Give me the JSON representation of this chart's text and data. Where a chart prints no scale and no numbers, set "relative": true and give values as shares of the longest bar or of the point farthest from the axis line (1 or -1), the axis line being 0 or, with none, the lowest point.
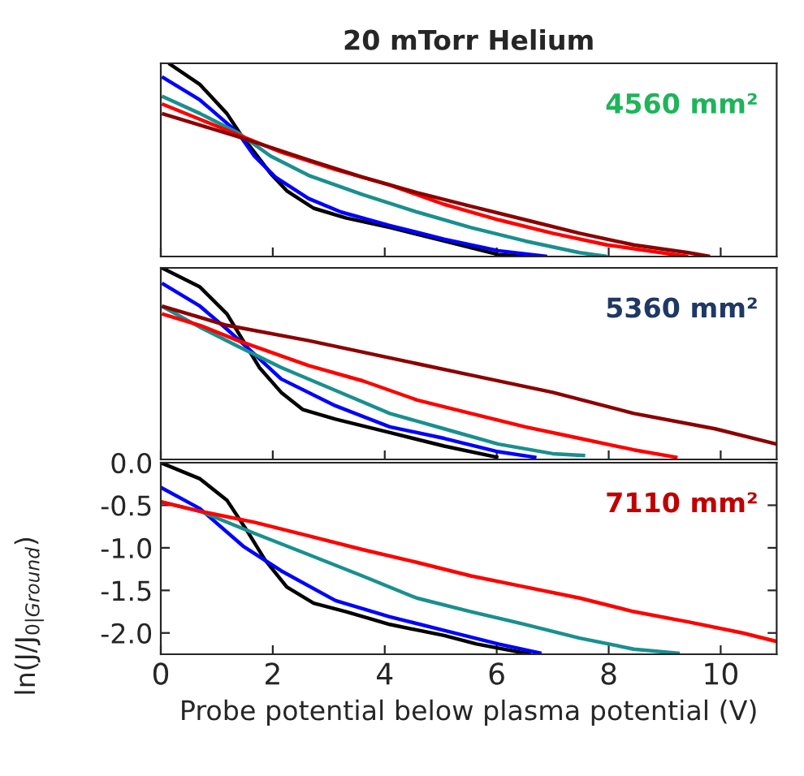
{
  "chart_data": [
    {
      "type": "line",
      "title": "20 mTorr Helium",
      "annotations": [
        "4560 mm²"
      ],
      "relative": true,
      "xlim": [
        0,
        11
      ],
      "tick_labels": false,
      "xticks": [
        {
          "value": 0,
          "label": null
        },
        {
          "value": 2,
          "label": null
        },
        {
          "value": 4,
          "label": null
        },
        {
          "value": 6,
          "label": null
        },
        {
          "value": 8,
          "label": null
        },
        {
          "value": 10,
          "label": null
        }
      ],
      "series": [
        {
          "color": "#000000",
          "x": [
            0.14,
            0.7,
            1.18,
            1.43,
            1.67,
            1.96,
            2.25,
            2.73,
            3.3,
            4.1,
            5.06,
            6.03,
            6.56
          ],
          "values": [
            1,
            0.89,
            0.74,
            0.63,
            0.54,
            0.43,
            0.34,
            0.25,
            0.2,
            0.15,
            0.08,
            0.01,
            0
          ]
        },
        {
          "color": "#0000ff",
          "x": [
            0.02,
            0.7,
            1.38,
            1.67,
            2.05,
            2.64,
            3.22,
            4.09,
            5.06,
            6.03,
            6.9
          ],
          "values": [
            0.93,
            0.81,
            0.64,
            0.52,
            0.41,
            0.3,
            0.23,
            0.16,
            0.09,
            0.03,
            0
          ]
        },
        {
          "color": "#1a8f8f",
          "x": [
            0.02,
            0.7,
            1.38,
            1.96,
            2.64,
            3.61,
            4.58,
            5.54,
            6.51,
            7.48,
            7.97
          ],
          "values": [
            0.83,
            0.74,
            0.64,
            0.52,
            0.42,
            0.32,
            0.23,
            0.15,
            0.08,
            0.02,
            0
          ]
        },
        {
          "color": "#ff0000",
          "x": [
            0.02,
            0.7,
            1.38,
            2.15,
            3.12,
            4.09,
            5.06,
            6.03,
            7.0,
            7.97,
            8.93,
            9.42
          ],
          "values": [
            0.79,
            0.71,
            0.63,
            0.54,
            0.45,
            0.37,
            0.27,
            0.19,
            0.12,
            0.06,
            0.02,
            0
          ]
        },
        {
          "color": "#8b0000",
          "x": [
            0.02,
            0.7,
            1.38,
            2.64,
            3.61,
            4.58,
            5.54,
            6.51,
            7.48,
            8.45,
            9.42,
            9.81
          ],
          "values": [
            0.74,
            0.68,
            0.62,
            0.5,
            0.41,
            0.33,
            0.26,
            0.19,
            0.12,
            0.06,
            0.02,
            0
          ]
        }
      ]
    },
    {
      "type": "line",
      "annotations": [
        "5360 mm²"
      ],
      "relative": true,
      "xlim": [
        0,
        11
      ],
      "tick_labels": false,
      "xticks": [
        {
          "value": 0,
          "label": null
        },
        {
          "value": 2,
          "label": null
        },
        {
          "value": 4,
          "label": null
        },
        {
          "value": 6,
          "label": null
        },
        {
          "value": 8,
          "label": null
        },
        {
          "value": 10,
          "label": null
        }
      ],
      "series": [
        {
          "color": "#000000",
          "x": [
            0.02,
            0.7,
            1.18,
            1.47,
            1.76,
            2.15,
            2.54,
            3.12,
            4.09,
            5.06,
            6.03
          ],
          "values": [
            1,
            0.9,
            0.76,
            0.62,
            0.48,
            0.35,
            0.26,
            0.21,
            0.14,
            0.07,
            0.01
          ]
        },
        {
          "color": "#0000ff",
          "x": [
            0.02,
            0.7,
            1.18,
            1.67,
            2.15,
            3.12,
            4.09,
            5.06,
            6.03,
            6.71
          ],
          "values": [
            0.92,
            0.8,
            0.68,
            0.55,
            0.42,
            0.28,
            0.17,
            0.11,
            0.04,
            0.01
          ]
        },
        {
          "color": "#1a8f8f",
          "x": [
            0.02,
            0.7,
            1.38,
            2.15,
            3.12,
            4.09,
            5.06,
            6.03,
            7.0,
            7.58
          ],
          "values": [
            0.8,
            0.69,
            0.59,
            0.48,
            0.36,
            0.24,
            0.16,
            0.08,
            0.03,
            0.02
          ]
        },
        {
          "color": "#ff0000",
          "x": [
            0.02,
            0.7,
            1.38,
            2.64,
            3.61,
            4.58,
            5.54,
            6.51,
            7.48,
            8.45,
            9.23
          ],
          "values": [
            0.76,
            0.7,
            0.62,
            0.49,
            0.41,
            0.31,
            0.24,
            0.17,
            0.11,
            0.05,
            0.01
          ]
        },
        {
          "color": "#8b0000",
          "x": [
            0.02,
            1.18,
            2.64,
            4.09,
            5.54,
            7.0,
            8.45,
            9.9,
            11.0
          ],
          "values": [
            0.8,
            0.7,
            0.62,
            0.53,
            0.44,
            0.35,
            0.24,
            0.16,
            0.08
          ]
        }
      ]
    },
    {
      "type": "line",
      "annotations": [
        "7110 mm²"
      ],
      "xlabel": "Probe potential below plasma potential (V)",
      "ylabel": "ln(J/J$_{0|Ground}$)",
      "xlim": [
        0,
        11
      ],
      "ylim": [
        -2.25,
        0
      ],
      "xticks": [
        0,
        2,
        4,
        6,
        8,
        10
      ],
      "yticks": [
        {
          "value": 0,
          "label": "0.0"
        },
        {
          "value": -0.5,
          "label": "-0.5"
        },
        {
          "value": -1.0,
          "label": "-1.0"
        },
        {
          "value": -1.5,
          "label": "-1.5"
        },
        {
          "value": -2.0,
          "label": "-2.0"
        }
      ],
      "series": [
        {
          "color": "#000000",
          "x": [
            0,
            0.7,
            1.18,
            1.57,
            1.86,
            2.25,
            2.73,
            3.31,
            4.09,
            5.06,
            5.64,
            6.61
          ],
          "values": [
            0,
            -0.19,
            -0.44,
            -0.83,
            -1.14,
            -1.46,
            -1.65,
            -1.75,
            -1.9,
            -2.03,
            -2.13,
            -2.25
          ]
        },
        {
          "color": "#0000ff",
          "x": [
            0,
            0.7,
            1.47,
            2.15,
            3.12,
            4.09,
            5.06,
            6.03,
            6.8
          ],
          "values": [
            -0.29,
            -0.54,
            -0.98,
            -1.27,
            -1.62,
            -1.81,
            -1.97,
            -2.13,
            -2.24
          ]
        },
        {
          "color": "#1a8f8f",
          "x": [
            0,
            0.7,
            1.67,
            2.64,
            3.6,
            4.57,
            5.54,
            6.51,
            7.48,
            8.45,
            9.27
          ],
          "values": [
            -0.46,
            -0.57,
            -0.83,
            -1.08,
            -1.33,
            -1.59,
            -1.75,
            -1.9,
            -2.06,
            -2.19,
            -2.24
          ]
        },
        {
          "color": "#ff0000",
          "x": [
            0,
            0.7,
            1.67,
            2.64,
            3.6,
            4.57,
            5.54,
            6.51,
            7.48,
            8.45,
            9.42,
            10.39,
            11.0
          ],
          "values": [
            -0.46,
            -0.57,
            -0.7,
            -0.86,
            -1.02,
            -1.17,
            -1.33,
            -1.46,
            -1.59,
            -1.75,
            -1.87,
            -2.0,
            -2.1
          ]
        }
      ]
    }
  ]
}
